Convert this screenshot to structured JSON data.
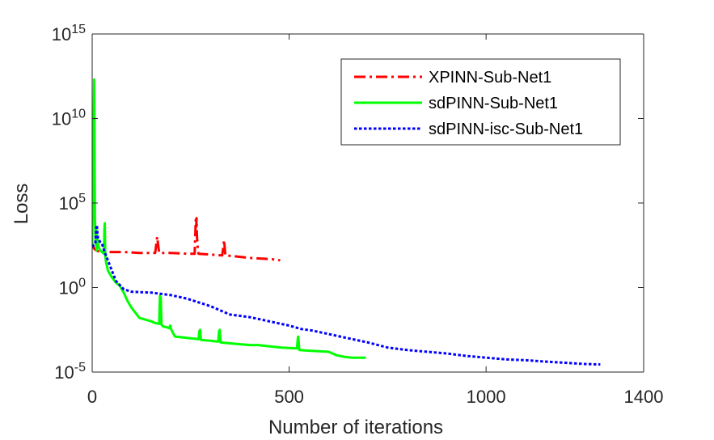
{
  "chart_data": {
    "type": "line",
    "title": "",
    "xlabel": "Number of iterations",
    "ylabel": "Loss",
    "xlim": [
      0,
      1400
    ],
    "ylim_log10": [
      -5,
      15
    ],
    "y_scale": "log",
    "x_ticks": [
      {
        "value": 0,
        "label": "0"
      },
      {
        "value": 500,
        "label": "500"
      },
      {
        "value": 1000,
        "label": "1000"
      },
      {
        "value": 1400,
        "label": "1400"
      }
    ],
    "y_ticks": [
      {
        "exp": -5,
        "base": "10",
        "sup": "-5"
      },
      {
        "exp": 0,
        "base": "10",
        "sup": "0"
      },
      {
        "exp": 5,
        "base": "10",
        "sup": "5"
      },
      {
        "exp": 10,
        "base": "10",
        "sup": "10"
      },
      {
        "exp": 15,
        "base": "10",
        "sup": "15"
      }
    ],
    "legend_position": "top-right",
    "series": [
      {
        "name": "XPINN-Sub-Net1",
        "color": "#ff0000",
        "style": "dashdot",
        "x": [
          0,
          5,
          10,
          20,
          40,
          80,
          120,
          160,
          163,
          165,
          167,
          170,
          200,
          240,
          260,
          262,
          263,
          264,
          265,
          266,
          268,
          270,
          300,
          330,
          333,
          335,
          338,
          360,
          400,
          440,
          470,
          477
        ],
        "log10_loss": [
          2.6,
          2.3,
          2.2,
          2.1,
          2.1,
          2.1,
          2.05,
          2.05,
          2.6,
          3.0,
          2.6,
          2.05,
          2.05,
          2.0,
          2.0,
          3.2,
          4.0,
          3.6,
          4.1,
          3.0,
          2.3,
          2.0,
          1.95,
          1.9,
          2.4,
          2.8,
          1.9,
          1.85,
          1.75,
          1.7,
          1.65,
          1.6
        ]
      },
      {
        "name": "sdPINN-Sub-Net1",
        "color": "#00ff00",
        "style": "solid",
        "x": [
          0,
          3,
          5,
          6,
          7,
          9,
          10,
          11,
          12,
          15,
          20,
          25,
          30,
          31,
          32,
          33,
          35,
          40,
          50,
          60,
          70,
          80,
          90,
          100,
          120,
          150,
          160,
          170,
          172,
          174,
          176,
          180,
          190,
          195,
          198,
          200,
          210,
          250,
          270,
          272,
          274,
          276,
          300,
          320,
          322,
          324,
          326,
          350,
          400,
          420,
          480,
          520,
          522,
          523,
          524,
          526,
          560,
          600,
          620,
          640,
          660,
          695
        ],
        "log10_loss": [
          2.5,
          8.0,
          12.3,
          9.0,
          4.0,
          2.6,
          3.5,
          2.2,
          3.1,
          2.5,
          2.2,
          2.1,
          2.0,
          3.4,
          3.8,
          2.0,
          1.5,
          1.0,
          0.6,
          0.3,
          0.1,
          -0.3,
          -0.8,
          -1.2,
          -1.8,
          -2.0,
          -2.1,
          -2.15,
          -0.5,
          -0.6,
          -2.2,
          -2.3,
          -2.35,
          -2.4,
          -2.25,
          -2.45,
          -2.9,
          -3.0,
          -3.05,
          -2.6,
          -2.5,
          -3.1,
          -3.15,
          -3.2,
          -2.6,
          -2.5,
          -3.25,
          -3.3,
          -3.4,
          -3.4,
          -3.55,
          -3.6,
          -3.0,
          -2.9,
          -3.2,
          -3.7,
          -3.75,
          -3.8,
          -4.0,
          -4.1,
          -4.15,
          -4.15
        ]
      },
      {
        "name": "sdPINN-isc-Sub-Net1",
        "color": "#0000ff",
        "style": "dotted",
        "x": [
          0,
          4,
          8,
          10,
          12,
          14,
          18,
          20,
          25,
          30,
          40,
          50,
          60,
          80,
          100,
          150,
          200,
          240,
          300,
          350,
          400,
          450,
          500,
          530,
          560,
          600,
          650,
          700,
          750,
          800,
          850,
          900,
          950,
          1000,
          1050,
          1100,
          1150,
          1200,
          1250,
          1290
        ],
        "log10_loss": [
          2.4,
          2.5,
          2.6,
          3.5,
          3.7,
          3.0,
          2.8,
          2.7,
          2.6,
          2.2,
          1.6,
          1.0,
          0.4,
          -0.1,
          -0.25,
          -0.3,
          -0.45,
          -0.65,
          -1.1,
          -1.6,
          -1.75,
          -2.0,
          -2.25,
          -2.45,
          -2.55,
          -2.75,
          -3.0,
          -3.25,
          -3.55,
          -3.7,
          -3.8,
          -3.9,
          -4.05,
          -4.15,
          -4.25,
          -4.3,
          -4.38,
          -4.45,
          -4.52,
          -4.55
        ]
      }
    ]
  }
}
